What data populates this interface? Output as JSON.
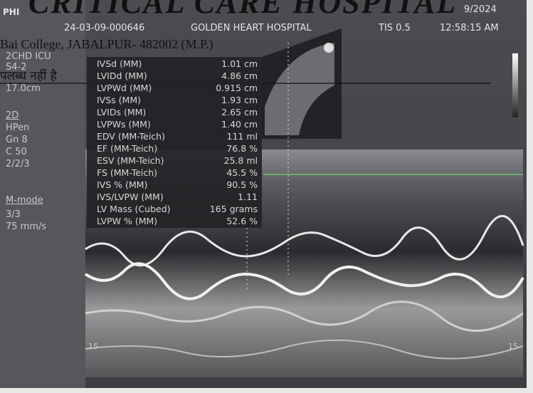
{
  "header": {
    "brand": "PHI",
    "hospital_heading": "CRITICAL CARE HOSPITAL",
    "date": "9/2024",
    "id": "24-03-09-000646",
    "hospital": "GOLDEN HEART HOSPITAL",
    "tis": "TIS 0.5",
    "time": "12:58:15 AM"
  },
  "stamp": {
    "address": "Bai College,   JABALPUR- 482002 (M.P.)",
    "hindi": "पलब्ध नहीं है"
  },
  "side_panel": [
    "2CHD ICU",
    "S4-2",
    "17.0cm",
    "2D",
    "HPen",
    "Gn 8",
    "C 50",
    "2/2/3",
    "M-mode",
    "3/3",
    "75 mm/s"
  ],
  "measurements": [
    {
      "label": "IVSd (MM)",
      "value": "1.01 cm"
    },
    {
      "label": "LVIDd (MM)",
      "value": "4.86 cm"
    },
    {
      "label": "LVPWd (MM)",
      "value": "0.915 cm"
    },
    {
      "label": "IVSs (MM)",
      "value": "1.93 cm"
    },
    {
      "label": "LVIDs (MM)",
      "value": "2.65 cm"
    },
    {
      "label": "LVPWs (MM)",
      "value": "1.40 cm"
    },
    {
      "label": "EDV (MM-Teich)",
      "value": "111 ml"
    },
    {
      "label": "EF (MM-Teich)",
      "value": "76.8 %"
    },
    {
      "label": "ESV (MM-Teich)",
      "value": "25.8 ml"
    },
    {
      "label": "FS (MM-Teich)",
      "value": "45.5 %"
    },
    {
      "label": "IVS % (MM)",
      "value": "90.5 %"
    },
    {
      "label": "IVS/LVPW (MM)",
      "value": "1.11"
    },
    {
      "label": "LV Mass (Cubed)",
      "value": "165 grams"
    },
    {
      "label": "LVPW % (MM)",
      "value": "52.6 %"
    }
  ],
  "scale": {
    "left": "15",
    "right": "15"
  }
}
